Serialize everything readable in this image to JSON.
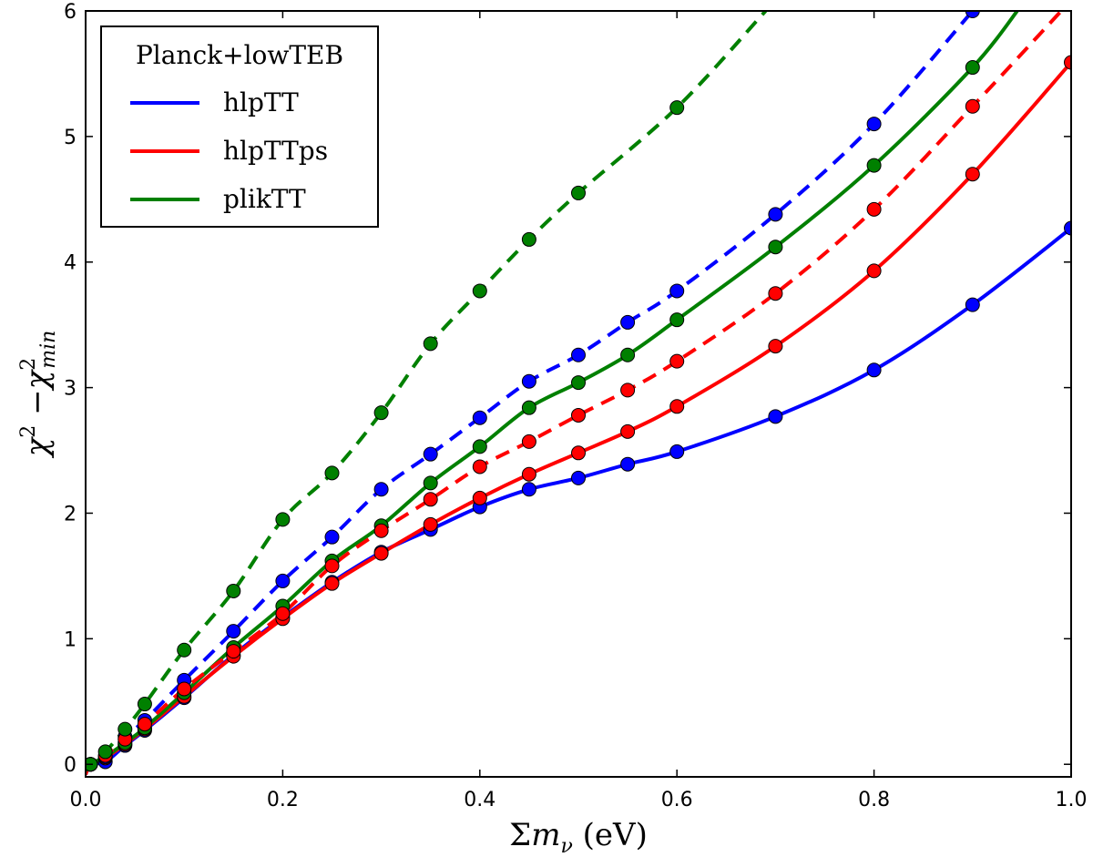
{
  "chart_data": {
    "type": "line",
    "xlim": [
      0.0,
      1.0
    ],
    "ylim": [
      -0.1,
      6.0
    ],
    "xticks": [
      "0.0",
      "0.2",
      "0.4",
      "0.6",
      "0.8",
      "1.0"
    ],
    "yticks": [
      "0",
      "1",
      "2",
      "3",
      "4",
      "5",
      "6"
    ],
    "xlabel": "Σmν (eV)",
    "ylabel": "χ² −χ²min",
    "legend": {
      "title": "Planck+lowTEB",
      "placement": "top-left",
      "entries": [
        "hlpTT",
        "hlpTTps",
        "plikTT"
      ]
    },
    "grid": false,
    "colors": {
      "hlpTT": "#0000ff",
      "hlpTTps": "#ff0000",
      "plikTT": "#008000"
    },
    "series": [
      {
        "name": "hlpTT",
        "style": "solid",
        "color": "#0000ff",
        "points": [
          [
            0.0,
            -0.08
          ],
          [
            0.005,
            0.0
          ],
          [
            0.02,
            0.02
          ],
          [
            0.04,
            0.15
          ],
          [
            0.06,
            0.27
          ],
          [
            0.1,
            0.53
          ],
          [
            0.15,
            0.87
          ],
          [
            0.2,
            1.17
          ],
          [
            0.25,
            1.45
          ],
          [
            0.3,
            1.69
          ],
          [
            0.35,
            1.87
          ],
          [
            0.4,
            2.05
          ],
          [
            0.45,
            2.19
          ],
          [
            0.5,
            2.28
          ],
          [
            0.55,
            2.39
          ],
          [
            0.6,
            2.49
          ],
          [
            0.7,
            2.77
          ],
          [
            0.8,
            3.14
          ],
          [
            0.9,
            3.66
          ],
          [
            1.0,
            4.27
          ]
        ],
        "markers": [
          [
            0.005,
            0.0
          ],
          [
            0.02,
            0.02
          ],
          [
            0.04,
            0.15
          ],
          [
            0.06,
            0.27
          ],
          [
            0.1,
            0.53
          ],
          [
            0.15,
            0.87
          ],
          [
            0.2,
            1.17
          ],
          [
            0.25,
            1.45
          ],
          [
            0.3,
            1.69
          ],
          [
            0.35,
            1.87
          ],
          [
            0.4,
            2.05
          ],
          [
            0.45,
            2.19
          ],
          [
            0.5,
            2.28
          ],
          [
            0.55,
            2.39
          ],
          [
            0.6,
            2.49
          ],
          [
            0.7,
            2.77
          ],
          [
            0.8,
            3.14
          ],
          [
            0.9,
            3.66
          ],
          [
            1.0,
            4.27
          ]
        ]
      },
      {
        "name": "hlpTTps",
        "style": "solid",
        "color": "#ff0000",
        "points": [
          [
            0.0,
            -0.08
          ],
          [
            0.005,
            0.0
          ],
          [
            0.02,
            0.05
          ],
          [
            0.04,
            0.16
          ],
          [
            0.06,
            0.28
          ],
          [
            0.1,
            0.54
          ],
          [
            0.15,
            0.86
          ],
          [
            0.2,
            1.16
          ],
          [
            0.25,
            1.44
          ],
          [
            0.3,
            1.68
          ],
          [
            0.35,
            1.91
          ],
          [
            0.4,
            2.12
          ],
          [
            0.45,
            2.31
          ],
          [
            0.5,
            2.48
          ],
          [
            0.55,
            2.65
          ],
          [
            0.6,
            2.85
          ],
          [
            0.7,
            3.33
          ],
          [
            0.8,
            3.93
          ],
          [
            0.9,
            4.7
          ],
          [
            1.0,
            5.59
          ]
        ],
        "markers": [
          [
            0.005,
            0.0
          ],
          [
            0.02,
            0.05
          ],
          [
            0.04,
            0.16
          ],
          [
            0.06,
            0.28
          ],
          [
            0.1,
            0.54
          ],
          [
            0.15,
            0.86
          ],
          [
            0.2,
            1.16
          ],
          [
            0.25,
            1.44
          ],
          [
            0.3,
            1.68
          ],
          [
            0.35,
            1.91
          ],
          [
            0.4,
            2.12
          ],
          [
            0.45,
            2.31
          ],
          [
            0.5,
            2.48
          ],
          [
            0.55,
            2.65
          ],
          [
            0.6,
            2.85
          ],
          [
            0.7,
            3.33
          ],
          [
            0.8,
            3.93
          ],
          [
            0.9,
            4.7
          ],
          [
            1.0,
            5.59
          ]
        ]
      },
      {
        "name": "plikTT",
        "style": "solid",
        "color": "#008000",
        "points": [
          [
            0.0,
            -0.08
          ],
          [
            0.005,
            0.0
          ],
          [
            0.02,
            0.06
          ],
          [
            0.04,
            0.17
          ],
          [
            0.06,
            0.29
          ],
          [
            0.1,
            0.57
          ],
          [
            0.15,
            0.93
          ],
          [
            0.2,
            1.26
          ],
          [
            0.25,
            1.62
          ],
          [
            0.3,
            1.9
          ],
          [
            0.35,
            2.24
          ],
          [
            0.4,
            2.53
          ],
          [
            0.45,
            2.84
          ],
          [
            0.5,
            3.04
          ],
          [
            0.55,
            3.26
          ],
          [
            0.6,
            3.54
          ],
          [
            0.7,
            4.12
          ],
          [
            0.8,
            4.77
          ],
          [
            0.9,
            5.55
          ],
          [
            0.95,
            6.05
          ]
        ],
        "markers": [
          [
            0.005,
            0.0
          ],
          [
            0.02,
            0.06
          ],
          [
            0.04,
            0.17
          ],
          [
            0.06,
            0.29
          ],
          [
            0.1,
            0.57
          ],
          [
            0.15,
            0.93
          ],
          [
            0.2,
            1.26
          ],
          [
            0.25,
            1.62
          ],
          [
            0.3,
            1.9
          ],
          [
            0.35,
            2.24
          ],
          [
            0.4,
            2.53
          ],
          [
            0.45,
            2.84
          ],
          [
            0.5,
            3.04
          ],
          [
            0.55,
            3.26
          ],
          [
            0.6,
            3.54
          ],
          [
            0.7,
            4.12
          ],
          [
            0.8,
            4.77
          ],
          [
            0.9,
            5.55
          ]
        ]
      },
      {
        "name": "hlpTT",
        "style": "dashed",
        "color": "#0000ff",
        "points": [
          [
            0.0,
            -0.08
          ],
          [
            0.005,
            0.0
          ],
          [
            0.02,
            0.06
          ],
          [
            0.04,
            0.22
          ],
          [
            0.06,
            0.35
          ],
          [
            0.1,
            0.67
          ],
          [
            0.15,
            1.06
          ],
          [
            0.2,
            1.46
          ],
          [
            0.25,
            1.81
          ],
          [
            0.3,
            2.19
          ],
          [
            0.35,
            2.47
          ],
          [
            0.4,
            2.76
          ],
          [
            0.45,
            3.05
          ],
          [
            0.5,
            3.26
          ],
          [
            0.55,
            3.52
          ],
          [
            0.6,
            3.77
          ],
          [
            0.7,
            4.38
          ],
          [
            0.8,
            5.1
          ],
          [
            0.9,
            6.0
          ]
        ],
        "markers": [
          [
            0.005,
            0.0
          ],
          [
            0.02,
            0.06
          ],
          [
            0.04,
            0.22
          ],
          [
            0.06,
            0.35
          ],
          [
            0.1,
            0.67
          ],
          [
            0.15,
            1.06
          ],
          [
            0.2,
            1.46
          ],
          [
            0.25,
            1.81
          ],
          [
            0.3,
            2.19
          ],
          [
            0.35,
            2.47
          ],
          [
            0.4,
            2.76
          ],
          [
            0.45,
            3.05
          ],
          [
            0.5,
            3.26
          ],
          [
            0.55,
            3.52
          ],
          [
            0.6,
            3.77
          ],
          [
            0.7,
            4.38
          ],
          [
            0.8,
            5.1
          ],
          [
            0.9,
            6.0
          ]
        ]
      },
      {
        "name": "hlpTTps",
        "style": "dashed",
        "color": "#ff0000",
        "points": [
          [
            0.0,
            -0.08
          ],
          [
            0.005,
            0.0
          ],
          [
            0.02,
            0.07
          ],
          [
            0.04,
            0.2
          ],
          [
            0.06,
            0.32
          ],
          [
            0.1,
            0.6
          ],
          [
            0.15,
            0.9
          ],
          [
            0.2,
            1.2
          ],
          [
            0.25,
            1.58
          ],
          [
            0.3,
            1.86
          ],
          [
            0.35,
            2.11
          ],
          [
            0.4,
            2.37
          ],
          [
            0.45,
            2.57
          ],
          [
            0.5,
            2.78
          ],
          [
            0.55,
            2.98
          ],
          [
            0.6,
            3.21
          ],
          [
            0.7,
            3.75
          ],
          [
            0.8,
            4.42
          ],
          [
            0.9,
            5.24
          ],
          [
            0.99,
            6.0
          ]
        ],
        "markers": [
          [
            0.005,
            0.0
          ],
          [
            0.02,
            0.07
          ],
          [
            0.04,
            0.2
          ],
          [
            0.06,
            0.32
          ],
          [
            0.1,
            0.6
          ],
          [
            0.15,
            0.9
          ],
          [
            0.2,
            1.2
          ],
          [
            0.25,
            1.58
          ],
          [
            0.3,
            1.86
          ],
          [
            0.35,
            2.11
          ],
          [
            0.4,
            2.37
          ],
          [
            0.45,
            2.57
          ],
          [
            0.5,
            2.78
          ],
          [
            0.55,
            2.98
          ],
          [
            0.6,
            3.21
          ],
          [
            0.7,
            3.75
          ],
          [
            0.8,
            4.42
          ],
          [
            0.9,
            5.24
          ]
        ]
      },
      {
        "name": "plikTT",
        "style": "dashed",
        "color": "#008000",
        "points": [
          [
            0.0,
            -0.05
          ],
          [
            0.005,
            0.0
          ],
          [
            0.02,
            0.1
          ],
          [
            0.04,
            0.28
          ],
          [
            0.06,
            0.48
          ],
          [
            0.1,
            0.91
          ],
          [
            0.15,
            1.38
          ],
          [
            0.2,
            1.95
          ],
          [
            0.25,
            2.32
          ],
          [
            0.3,
            2.8
          ],
          [
            0.35,
            3.35
          ],
          [
            0.4,
            3.77
          ],
          [
            0.45,
            4.18
          ],
          [
            0.5,
            4.55
          ],
          [
            0.6,
            5.23
          ],
          [
            0.69,
            6.0
          ]
        ],
        "markers": [
          [
            0.005,
            0.0
          ],
          [
            0.02,
            0.1
          ],
          [
            0.04,
            0.28
          ],
          [
            0.06,
            0.48
          ],
          [
            0.1,
            0.91
          ],
          [
            0.15,
            1.38
          ],
          [
            0.2,
            1.95
          ],
          [
            0.25,
            2.32
          ],
          [
            0.3,
            2.8
          ],
          [
            0.35,
            3.35
          ],
          [
            0.4,
            3.77
          ],
          [
            0.45,
            4.18
          ],
          [
            0.5,
            4.55
          ],
          [
            0.6,
            5.23
          ]
        ]
      }
    ]
  }
}
